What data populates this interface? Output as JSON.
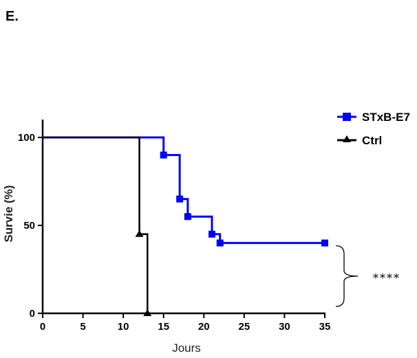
{
  "panel_label": "E.",
  "chart_data": {
    "type": "line",
    "subtype": "kaplan-meier-survival",
    "title": "",
    "xlabel": "Jours",
    "ylabel": "Survie (%)",
    "xlim": [
      0,
      35
    ],
    "ylim": [
      0,
      100
    ],
    "x_ticks": [
      0,
      5,
      10,
      15,
      20,
      25,
      30,
      35
    ],
    "y_ticks": [
      0,
      50,
      100
    ],
    "grid": false,
    "legend_position": "top-right",
    "series": [
      {
        "name": "STxB-E7",
        "color": "#0000ff",
        "marker": "square",
        "steps": [
          [
            0,
            100
          ],
          [
            15,
            90
          ],
          [
            17,
            65
          ],
          [
            18,
            55
          ],
          [
            21,
            45
          ],
          [
            22,
            40
          ],
          [
            35,
            40
          ]
        ],
        "markers": [
          [
            15,
            90
          ],
          [
            17,
            65
          ],
          [
            18,
            55
          ],
          [
            21,
            45
          ],
          [
            22,
            40
          ],
          [
            35,
            40
          ]
        ]
      },
      {
        "name": "Ctrl",
        "color": "#000000",
        "marker": "triangle",
        "steps": [
          [
            0,
            100
          ],
          [
            12,
            45
          ],
          [
            13,
            0
          ]
        ],
        "markers": [
          [
            12,
            45
          ],
          [
            13,
            0
          ]
        ]
      }
    ],
    "annotations": [
      {
        "text": "****",
        "type": "significance-bracket",
        "y_range": [
          0,
          40
        ]
      }
    ]
  }
}
